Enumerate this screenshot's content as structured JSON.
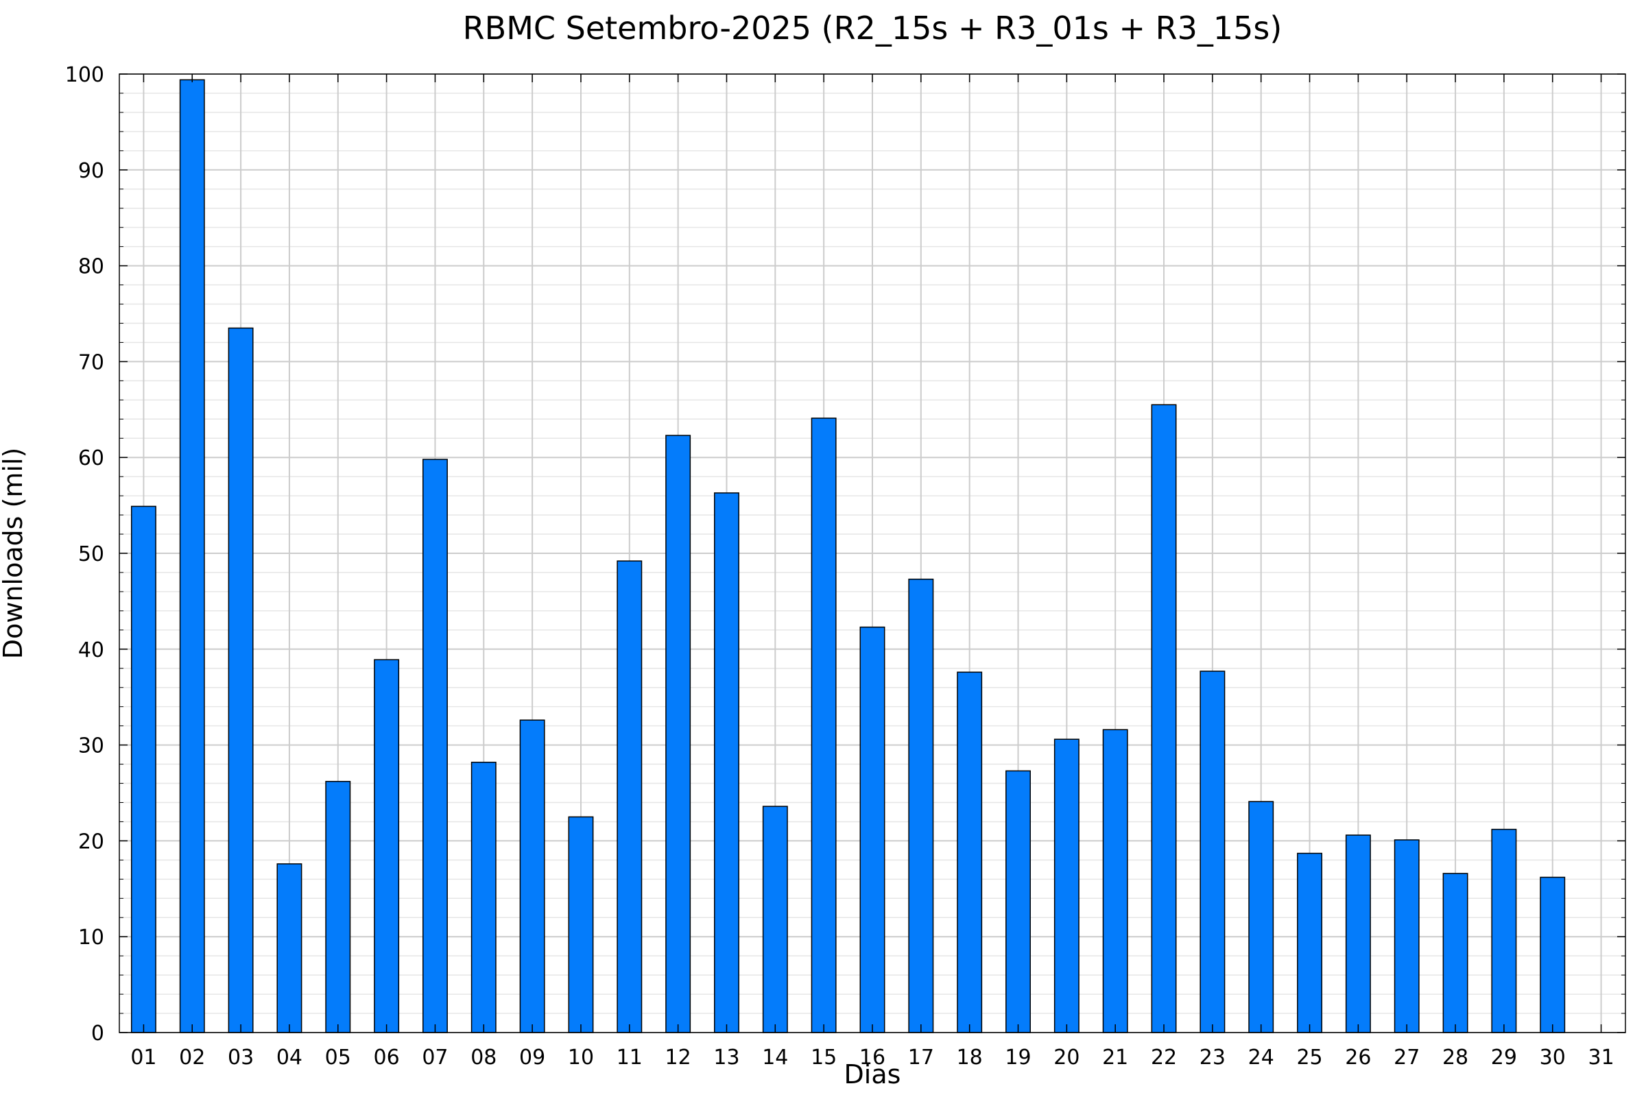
{
  "chart_data": {
    "type": "bar",
    "title": "RBMC Setembro-2025 (R2_15s + R3_01s + R3_15s)",
    "xlabel": "Dias",
    "ylabel": "Downloads (mil)",
    "ylim": [
      0,
      100
    ],
    "yticks": [
      0,
      10,
      20,
      30,
      40,
      50,
      60,
      70,
      80,
      90,
      100
    ],
    "categories": [
      "01",
      "02",
      "03",
      "04",
      "05",
      "06",
      "07",
      "08",
      "09",
      "10",
      "11",
      "12",
      "13",
      "14",
      "15",
      "16",
      "17",
      "18",
      "19",
      "20",
      "21",
      "22",
      "23",
      "24",
      "25",
      "26",
      "27",
      "28",
      "29",
      "30",
      "31"
    ],
    "values": [
      54.9,
      99.4,
      73.5,
      17.6,
      26.2,
      38.9,
      59.8,
      28.2,
      32.6,
      22.5,
      49.2,
      62.3,
      56.3,
      23.6,
      64.1,
      42.3,
      47.3,
      37.6,
      27.3,
      30.6,
      31.6,
      65.5,
      37.7,
      24.1,
      18.7,
      20.6,
      20.1,
      16.6,
      21.2,
      16.2,
      null
    ],
    "bar_color": "#047cfb",
    "bar_edge_color": "#000000",
    "grid": true,
    "legend": "none"
  }
}
